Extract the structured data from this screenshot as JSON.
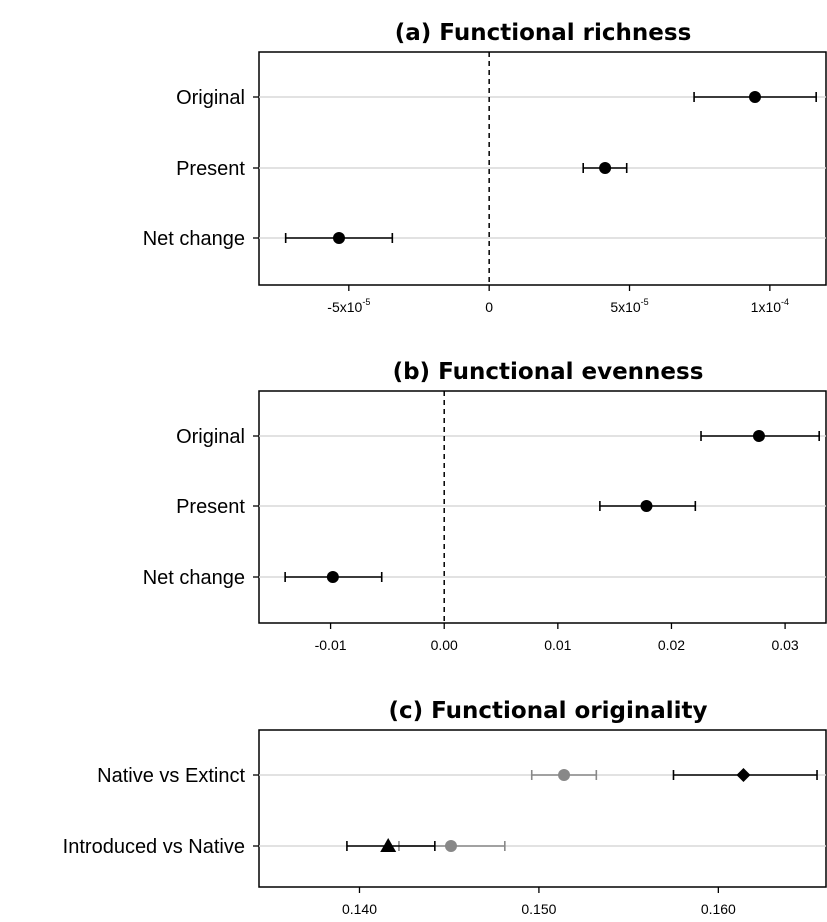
{
  "chart_data": [
    {
      "type": "forest",
      "title": "(a) Functional richness",
      "categories": [
        "Original",
        "Present",
        "Net change"
      ],
      "series": [
        {
          "points": [
            {
              "category": "Original",
              "value": 9.47e-05,
              "low": 7.3e-05,
              "high": 0.0001165,
              "marker": "circle",
              "color": "#000000"
            },
            {
              "category": "Present",
              "value": 4.13e-05,
              "low": 3.35e-05,
              "high": 4.9e-05,
              "marker": "circle",
              "color": "#000000"
            },
            {
              "category": "Net change",
              "value": -5.35e-05,
              "low": -7.25e-05,
              "high": -3.45e-05,
              "marker": "circle",
              "color": "#000000"
            }
          ]
        }
      ],
      "xlim": [
        -8.2e-05,
        0.00012
      ],
      "reference_line": 0,
      "xticks": [
        {
          "value": -5e-05,
          "base": "-5x10",
          "exp": "-5"
        },
        {
          "value": 0,
          "base": "0",
          "exp": ""
        },
        {
          "value": 5e-05,
          "base": "5x10",
          "exp": "-5"
        },
        {
          "value": 0.0001,
          "base": "1x10",
          "exp": "-4"
        }
      ],
      "grid": "horizontal"
    },
    {
      "type": "forest",
      "title": "(b) Functional evenness",
      "categories": [
        "Original",
        "Present",
        "Net change"
      ],
      "series": [
        {
          "points": [
            {
              "category": "Original",
              "value": 0.0277,
              "low": 0.0226,
              "high": 0.033,
              "marker": "circle",
              "color": "#000000"
            },
            {
              "category": "Present",
              "value": 0.0178,
              "low": 0.0137,
              "high": 0.0221,
              "marker": "circle",
              "color": "#000000"
            },
            {
              "category": "Net change",
              "value": -0.0098,
              "low": -0.014,
              "high": -0.0055,
              "marker": "circle",
              "color": "#000000"
            }
          ]
        }
      ],
      "xlim": [
        -0.0163,
        0.0336
      ],
      "reference_line": 0,
      "xticks": [
        {
          "value": -0.01,
          "base": "-0.01",
          "exp": ""
        },
        {
          "value": 0,
          "base": "0.00",
          "exp": ""
        },
        {
          "value": 0.01,
          "base": "0.01",
          "exp": ""
        },
        {
          "value": 0.02,
          "base": "0.02",
          "exp": ""
        },
        {
          "value": 0.03,
          "base": "0.03",
          "exp": ""
        }
      ],
      "grid": "horizontal"
    },
    {
      "type": "forest",
      "title": "(c) Functional originality",
      "categories": [
        "Native vs Extinct",
        "Introduced vs Native"
      ],
      "series": [
        {
          "points": [
            {
              "category": "Native vs Extinct",
              "value": 0.1614,
              "low": 0.1575,
              "high": 0.1655,
              "marker": "diamond",
              "color": "#000000"
            },
            {
              "category": "Introduced vs Native",
              "value": 0.1416,
              "low": 0.1393,
              "high": 0.1442,
              "marker": "triangle",
              "color": "#000000"
            }
          ]
        },
        {
          "points": [
            {
              "category": "Native vs Extinct",
              "value": 0.1514,
              "low": 0.1496,
              "high": 0.1532,
              "marker": "circle",
              "color": "#888888"
            },
            {
              "category": "Introduced vs Native",
              "value": 0.1451,
              "low": 0.1422,
              "high": 0.1481,
              "marker": "circle",
              "color": "#888888"
            }
          ]
        }
      ],
      "xlim": [
        0.1344,
        0.166
      ],
      "xticks": [
        {
          "value": 0.14,
          "base": "0.140",
          "exp": ""
        },
        {
          "value": 0.15,
          "base": "0.150",
          "exp": ""
        },
        {
          "value": 0.16,
          "base": "0.160",
          "exp": ""
        }
      ],
      "grid": "horizontal"
    }
  ]
}
